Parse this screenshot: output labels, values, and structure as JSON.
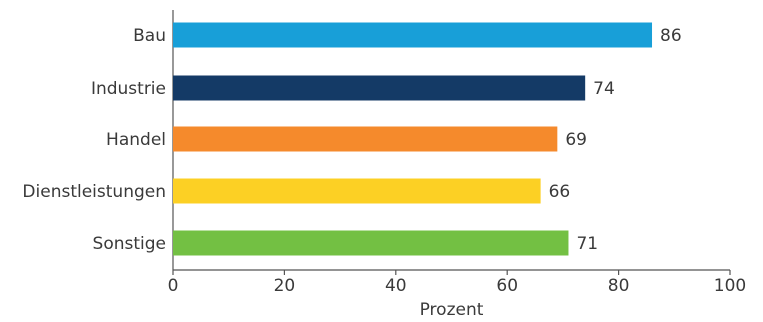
{
  "chart_data": {
    "type": "bar",
    "orientation": "horizontal",
    "categories": [
      "Bau",
      "Industrie",
      "Handel",
      "Dienstleistungen",
      "Sonstige"
    ],
    "values": [
      86,
      74,
      69,
      66,
      71
    ],
    "colors": [
      "#189fd8",
      "#143a66",
      "#f58a2c",
      "#fcd024",
      "#73c043"
    ],
    "xlabel": "Prozent",
    "ylabel": "",
    "title": "",
    "xlim": [
      0,
      100
    ],
    "xticks": [
      0,
      20,
      40,
      60,
      80,
      100
    ],
    "grid": false,
    "legend": "none"
  }
}
